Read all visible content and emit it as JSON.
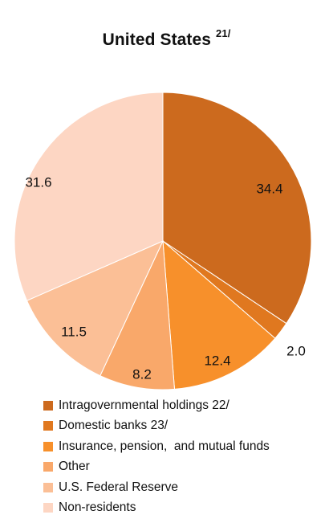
{
  "chart_data": {
    "type": "pie",
    "title": "United States",
    "title_note": "21/",
    "start_angle_deg": 0,
    "direction": "clockwise",
    "slices": [
      {
        "label": "Intragovernmental holdings 22/",
        "value": 34.4,
        "display": "34.4",
        "color": "#cc6a1e"
      },
      {
        "label": "Domestic banks 23/",
        "value": 2.0,
        "display": "2.0",
        "color": "#e0781f"
      },
      {
        "label": "Insurance, pension,  and mutual funds",
        "value": 12.4,
        "display": "12.4",
        "color": "#f7902b"
      },
      {
        "label": "Other",
        "value": 8.2,
        "display": "8.2",
        "color": "#f9a86a"
      },
      {
        "label": "U.S. Federal Reserve",
        "value": 11.5,
        "display": "11.5",
        "color": "#fbbf96"
      },
      {
        "label": "Non-residents",
        "value": 31.6,
        "display": "31.6",
        "color": "#fdd6c3"
      }
    ],
    "legend_position": "bottom"
  }
}
